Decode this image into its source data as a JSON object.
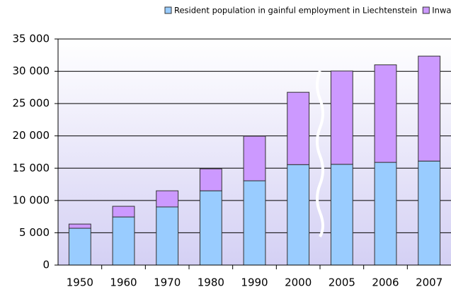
{
  "chart_data": {
    "type": "stacked_bar",
    "categories": [
      "1950",
      "1960",
      "1970",
      "1980",
      "1990",
      "2000",
      "2005",
      "2006",
      "2007"
    ],
    "series": [
      {
        "name": "Resident population in gainful employment in Liechtenstein",
        "color": "#99ccff",
        "values": [
          5700,
          7450,
          9000,
          11500,
          13050,
          15550,
          15600,
          15900,
          16100
        ]
      },
      {
        "name": "Inward commuters",
        "color": "#cc99ff",
        "values": [
          650,
          1650,
          2500,
          3400,
          6900,
          11200,
          14450,
          15100,
          16250
        ]
      }
    ],
    "ylim": [
      0,
      35000
    ],
    "yticks": [
      0,
      {
        "value": 5000,
        "label": "5 000"
      },
      {
        "value": 10000,
        "label": "10 000"
      },
      {
        "value": 15000,
        "label": "15 000"
      },
      {
        "value": 20000,
        "label": "20 000"
      },
      {
        "value": 25000,
        "label": "25 000"
      },
      {
        "value": 30000,
        "label": "30 000"
      },
      {
        "value": 35000,
        "label": "35 000"
      }
    ],
    "grid": true,
    "legend": "top"
  }
}
